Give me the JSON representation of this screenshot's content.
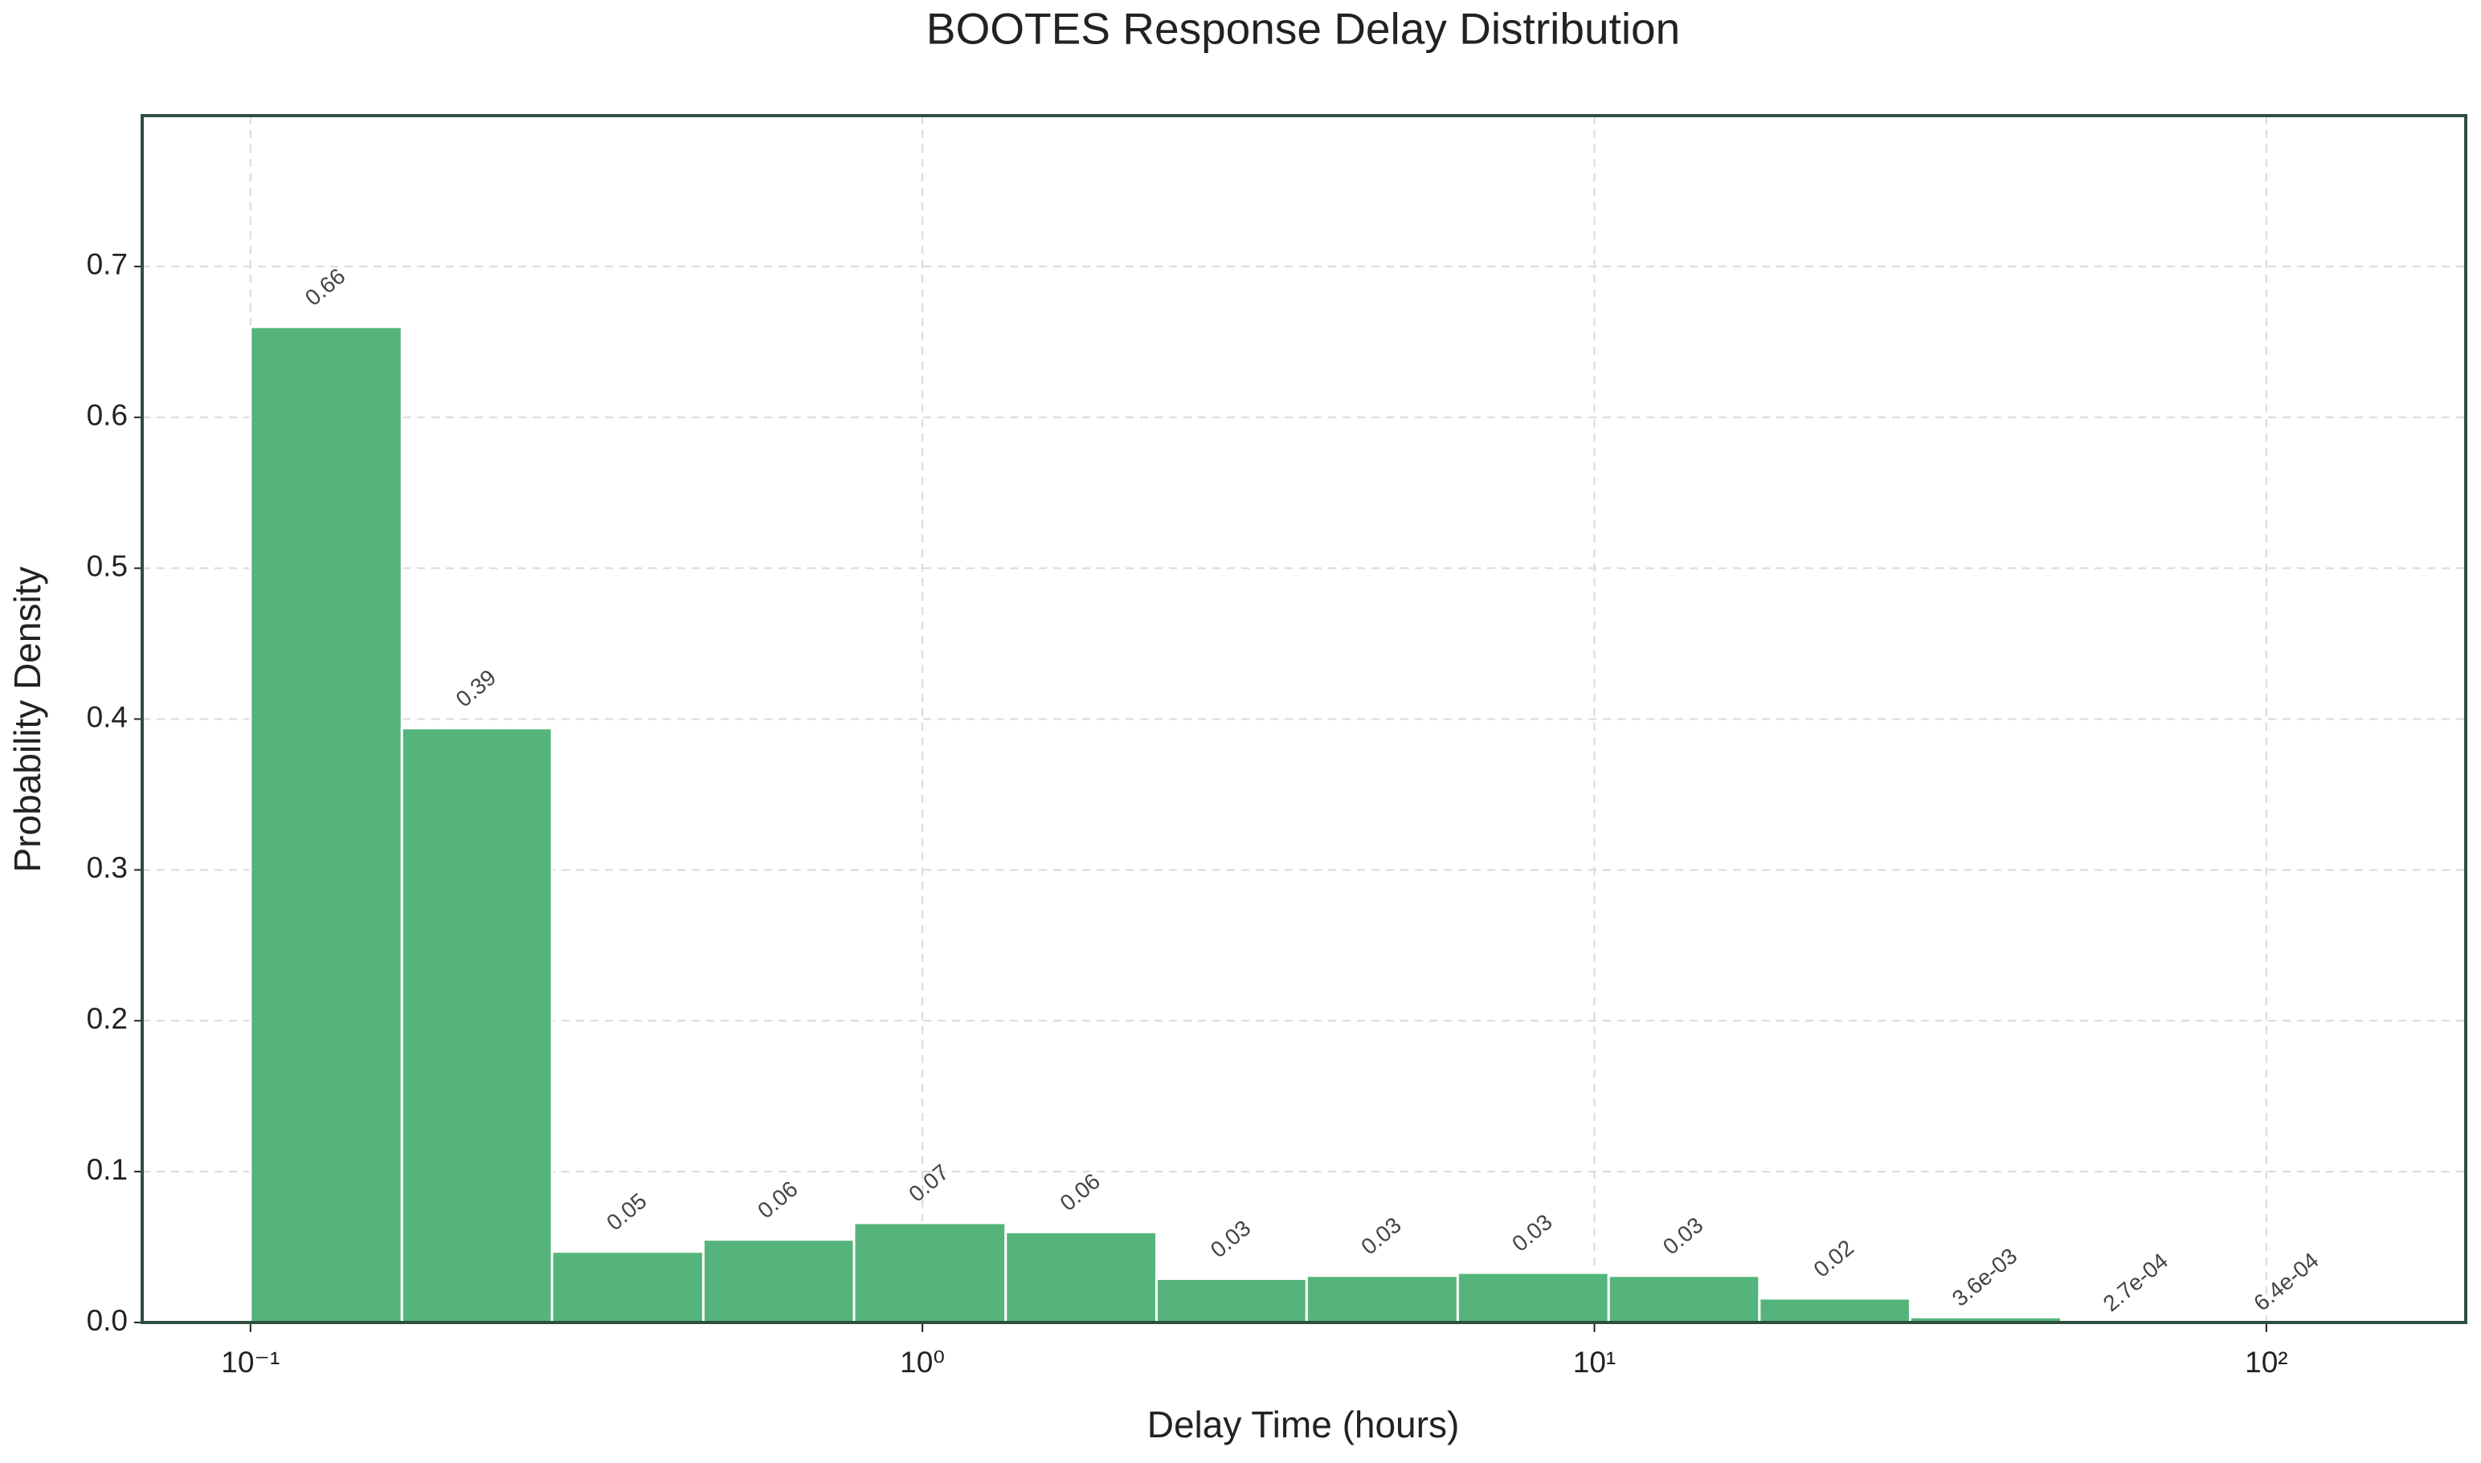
{
  "chart_data": {
    "type": "histogram",
    "title": "BOOTES Response Delay Distribution",
    "x_label": "Delay Time (hours)",
    "y_label": "Probability Density",
    "bins": [
      0.1,
      0.168,
      0.281,
      0.472,
      0.791,
      1.33,
      2.23,
      3.73,
      6.26,
      10.5,
      17.6,
      29.5,
      49.5,
      83.0,
      139
    ],
    "values": [
      0.66,
      0.394,
      0.047,
      0.055,
      0.066,
      0.06,
      0.029,
      0.031,
      0.033,
      0.031,
      0.016,
      0.0036,
      0.00027,
      0.00064
    ],
    "value_labels": [
      "0.66",
      "0.39",
      "0.05",
      "0.06",
      "0.07",
      "0.06",
      "0.03",
      "0.03",
      "0.03",
      "0.03",
      "0.02",
      "3.6e-03",
      "2.7e-04",
      "6.4e-04"
    ],
    "color": "#55b47b",
    "xscale": "log",
    "xlim": [
      0.069,
      198
    ],
    "xticks": [
      {
        "value": 0.1,
        "label": "10⁻¹"
      },
      {
        "value": 1,
        "label": "10⁰"
      },
      {
        "value": 10,
        "label": "10¹"
      },
      {
        "value": 100,
        "label": "10²"
      }
    ],
    "ylim": [
      0,
      0.8
    ],
    "yticks": [
      {
        "value": 0,
        "label": "0.0"
      },
      0.1,
      0.2,
      0.3,
      0.4,
      0.5,
      0.6,
      0.7
    ],
    "grid": true
  }
}
